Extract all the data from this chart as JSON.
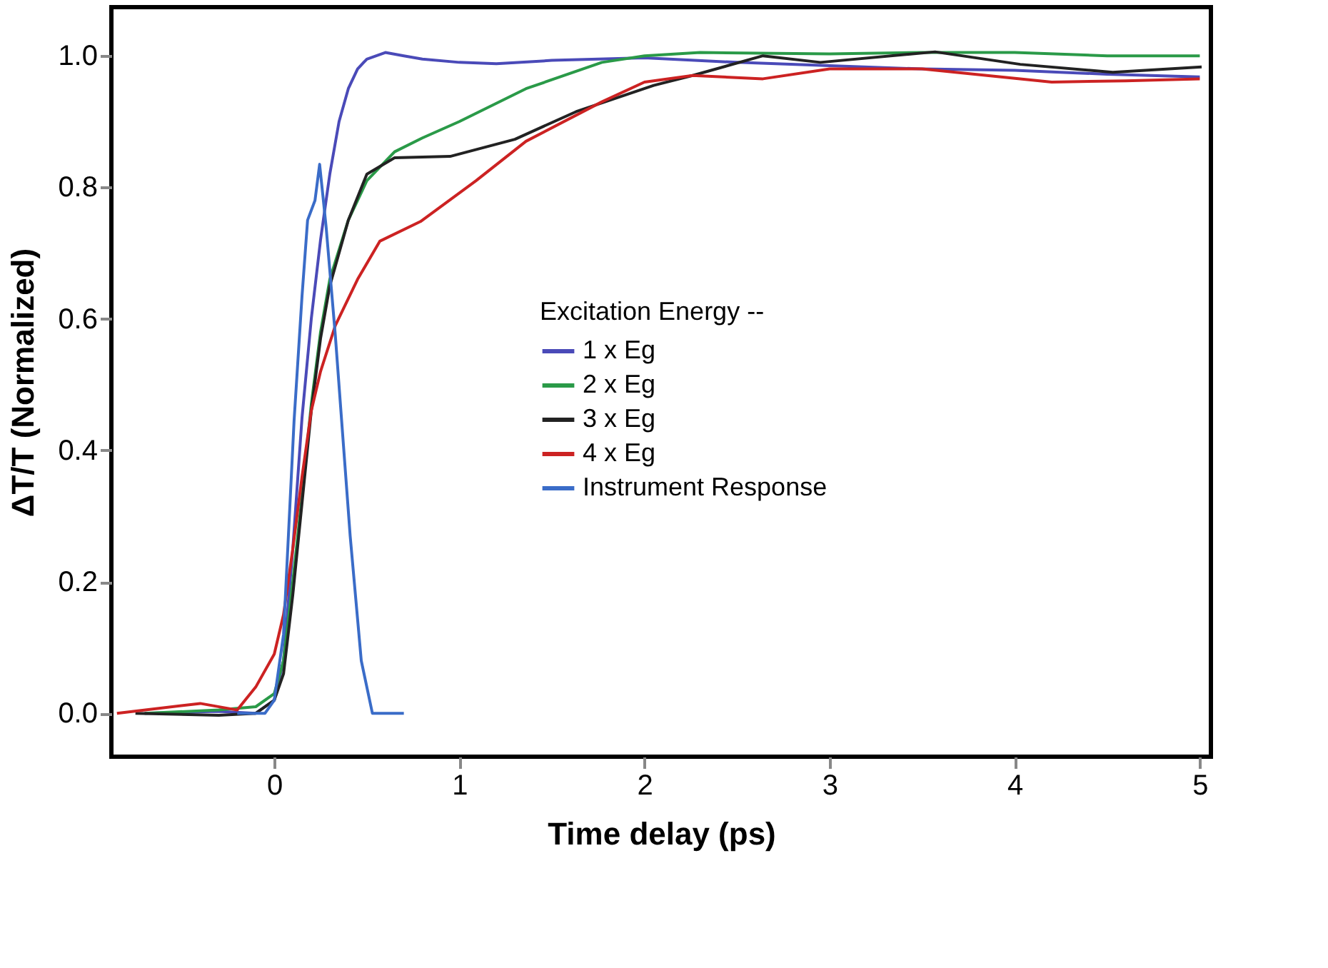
{
  "chart_data": {
    "type": "line",
    "xlabel": "Time delay (ps)",
    "ylabel": "ΔT/T (Normalized)",
    "legend_title": "Excitation Energy --",
    "xlim": [
      -0.88,
      5.06
    ],
    "ylim": [
      -0.066,
      1.074
    ],
    "xticks": [
      0,
      1,
      2,
      3,
      4,
      5
    ],
    "yticks": [
      {
        "value": 0,
        "label": "0.0"
      },
      0.2,
      0.4,
      0.6,
      0.8,
      {
        "value": 1,
        "label": "1.0"
      }
    ],
    "grid": false,
    "legend": "right",
    "marker": "none",
    "line_style": "solid",
    "series": [
      {
        "name": "1 x Eg",
        "color": "#4a4ab8",
        "x": [
          -0.7,
          -0.3,
          -0.1,
          0.0,
          0.05,
          0.1,
          0.15,
          0.2,
          0.25,
          0.3,
          0.35,
          0.4,
          0.45,
          0.5,
          0.6,
          0.7,
          0.8,
          1.0,
          1.2,
          1.5,
          2.0,
          2.5,
          3.0,
          3.5,
          4.0,
          4.5,
          5.0
        ],
        "values": [
          0,
          0.003,
          0,
          0.02,
          0.08,
          0.25,
          0.45,
          0.6,
          0.72,
          0.82,
          0.9,
          0.95,
          0.98,
          0.995,
          1.005,
          1.0,
          0.995,
          0.99,
          0.988,
          0.993,
          0.997,
          0.99,
          0.985,
          0.98,
          0.978,
          0.972,
          0.968
        ]
      },
      {
        "name": "2 x Eg",
        "color": "#2a9a48",
        "x": [
          -0.7,
          -0.3,
          -0.1,
          0.0,
          0.05,
          0.1,
          0.15,
          0.2,
          0.25,
          0.3,
          0.4,
          0.5,
          0.65,
          0.8,
          1.0,
          1.36,
          1.77,
          2.0,
          2.3,
          3.0,
          3.5,
          4.0,
          4.5,
          5.0
        ],
        "values": [
          0,
          0.005,
          0.01,
          0.03,
          0.08,
          0.2,
          0.33,
          0.47,
          0.58,
          0.66,
          0.75,
          0.81,
          0.854,
          0.875,
          0.9,
          0.95,
          0.99,
          1.0,
          1.005,
          1.003,
          1.005,
          1.005,
          1.0,
          1.0
        ]
      },
      {
        "name": "3 x Eg",
        "color": "#222222",
        "x": [
          -0.75,
          -0.3,
          -0.1,
          0.0,
          0.05,
          0.1,
          0.15,
          0.2,
          0.25,
          0.3,
          0.4,
          0.5,
          0.65,
          0.95,
          1.3,
          1.63,
          2.05,
          2.26,
          2.64,
          2.95,
          3.57,
          4.03,
          4.53,
          5.01
        ],
        "values": [
          0,
          -0.003,
          0,
          0.02,
          0.06,
          0.18,
          0.32,
          0.46,
          0.57,
          0.65,
          0.75,
          0.82,
          0.845,
          0.847,
          0.873,
          0.915,
          0.955,
          0.97,
          1.0,
          0.99,
          1.006,
          0.987,
          0.975,
          0.983
        ]
      },
      {
        "name": "4 x Eg",
        "color": "#cc2222",
        "x": [
          -0.85,
          -0.4,
          -0.2,
          -0.1,
          0.0,
          0.05,
          0.1,
          0.15,
          0.2,
          0.25,
          0.33,
          0.45,
          0.57,
          0.79,
          1.09,
          1.36,
          1.77,
          2.0,
          2.26,
          2.64,
          3.0,
          3.5,
          4.2,
          4.6,
          5.0
        ],
        "values": [
          0,
          0.015,
          0.005,
          0.04,
          0.09,
          0.15,
          0.25,
          0.36,
          0.46,
          0.52,
          0.59,
          0.66,
          0.718,
          0.748,
          0.81,
          0.87,
          0.93,
          0.96,
          0.97,
          0.965,
          0.98,
          0.98,
          0.96,
          0.962,
          0.965
        ]
      },
      {
        "name": "Instrument Response",
        "color": "#3a6cc8",
        "x": [
          -0.2,
          -0.05,
          0.0,
          0.05,
          0.107,
          0.15,
          0.18,
          0.22,
          0.245,
          0.28,
          0.33,
          0.41,
          0.47,
          0.53,
          0.6,
          0.7
        ],
        "values": [
          0,
          0,
          0.02,
          0.12,
          0.445,
          0.635,
          0.75,
          0.78,
          0.835,
          0.74,
          0.574,
          0.27,
          0.08,
          0.0,
          0.0,
          0.0
        ]
      }
    ]
  }
}
